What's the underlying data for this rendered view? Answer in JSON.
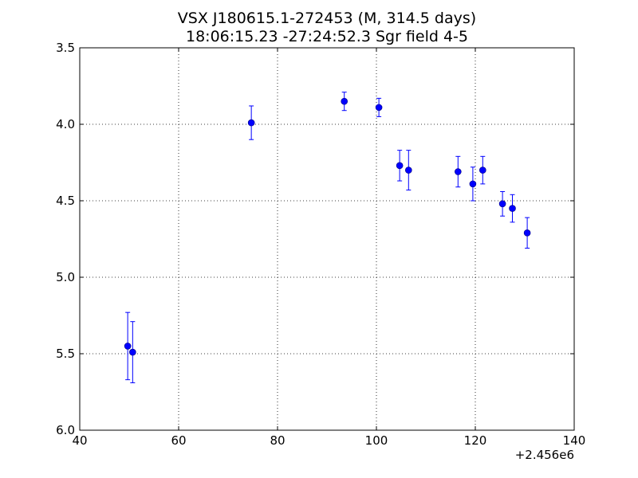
{
  "chart_data": {
    "type": "scatter",
    "title": "VSX J180615.1-272453 (M, 314.5 days)",
    "subtitle": "18:06:15.23 -27:24:52.3 Sgr field 4-5",
    "xlabel": "",
    "ylabel": "",
    "x_offset_label": "+2.456e6",
    "xlim": [
      40,
      140
    ],
    "ylim": [
      6.0,
      3.5
    ],
    "y_inverted": true,
    "grid": true,
    "x_ticks": [
      "40",
      "60",
      "80",
      "100",
      "120",
      "140"
    ],
    "y_ticks": [
      "3.5",
      "4.0",
      "4.5",
      "5.0",
      "5.5",
      "6.0"
    ],
    "series_color": "#0000ff",
    "points": [
      {
        "x": 49.7,
        "y": 5.45,
        "err": 0.22
      },
      {
        "x": 50.7,
        "y": 5.49,
        "err": 0.2
      },
      {
        "x": 74.7,
        "y": 3.99,
        "err": 0.11
      },
      {
        "x": 93.5,
        "y": 3.85,
        "err": 0.06
      },
      {
        "x": 100.5,
        "y": 3.89,
        "err": 0.06
      },
      {
        "x": 104.7,
        "y": 4.27,
        "err": 0.1
      },
      {
        "x": 106.5,
        "y": 4.3,
        "err": 0.13
      },
      {
        "x": 116.5,
        "y": 4.31,
        "err": 0.1
      },
      {
        "x": 119.5,
        "y": 4.39,
        "err": 0.11
      },
      {
        "x": 121.5,
        "y": 4.3,
        "err": 0.09
      },
      {
        "x": 125.5,
        "y": 4.52,
        "err": 0.08
      },
      {
        "x": 127.5,
        "y": 4.55,
        "err": 0.09
      },
      {
        "x": 130.5,
        "y": 4.71,
        "err": 0.1
      }
    ]
  }
}
